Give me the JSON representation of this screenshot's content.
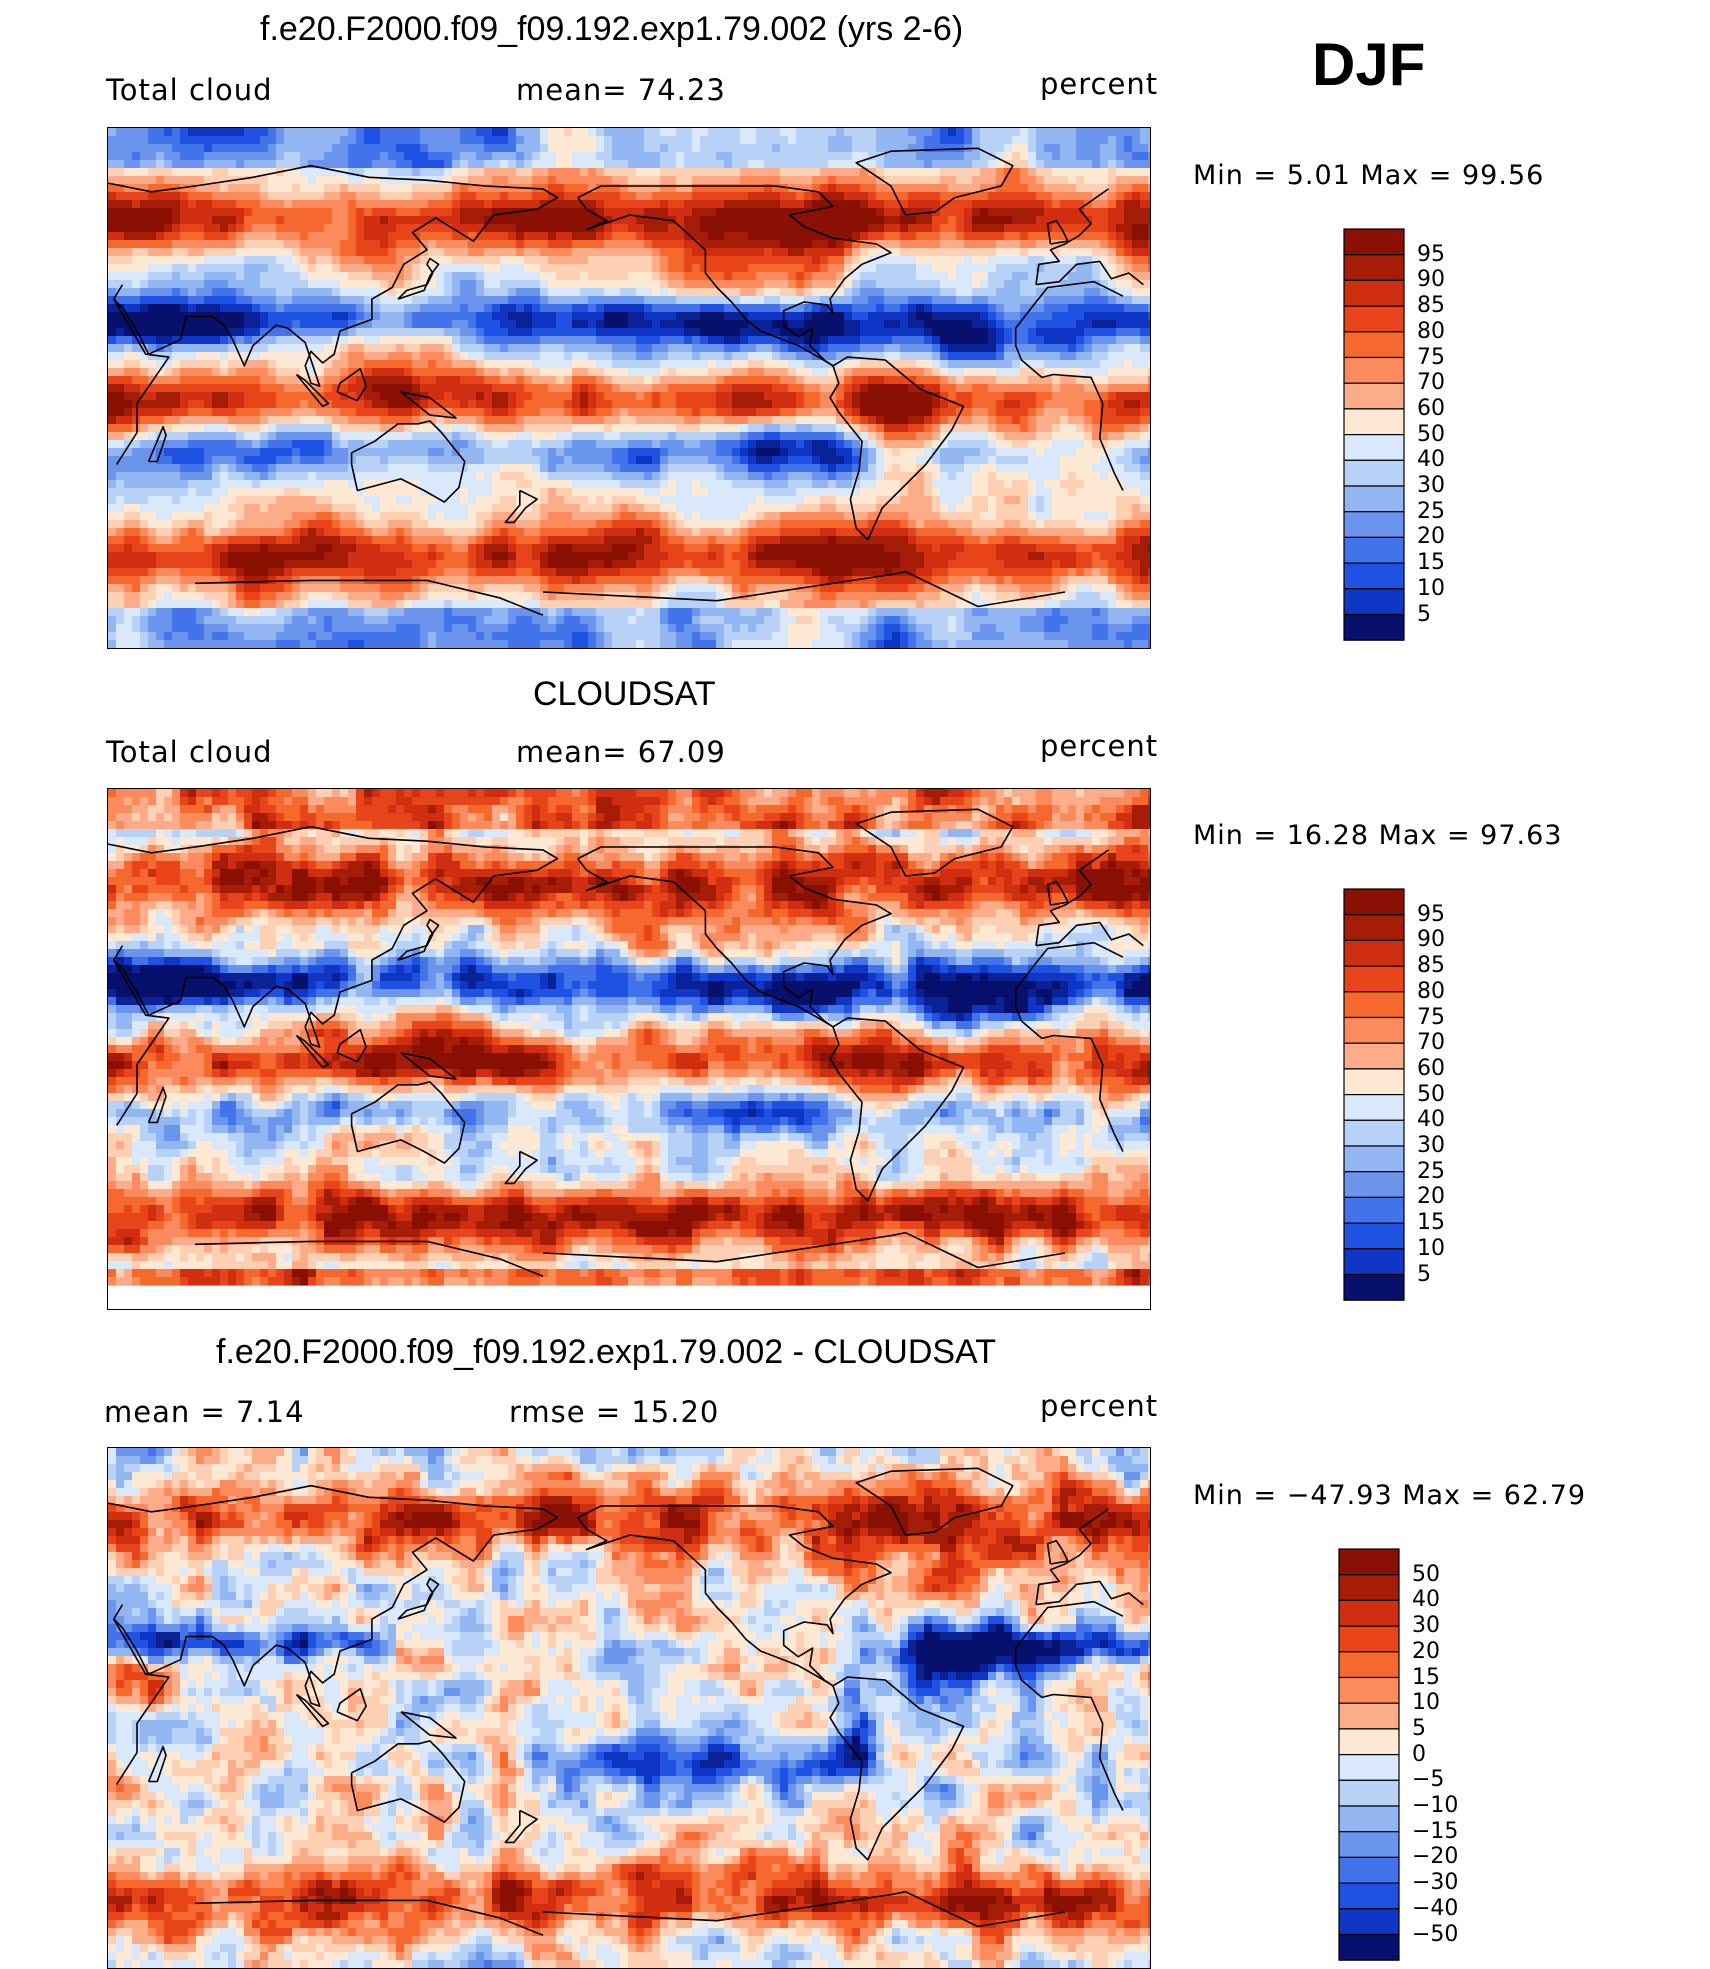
{
  "season": "DJF",
  "colors": {
    "warm": [
      "#fde8d4",
      "#fdd0b3",
      "#fcac88",
      "#fb8a5c",
      "#f5692e",
      "#e8461a",
      "#cf2f10",
      "#a51d07",
      "#8b1004"
    ],
    "cool": [
      "#d9e8fb",
      "#b8d2f7",
      "#92b6f2",
      "#6b95ed",
      "#4373ea",
      "#1f51e2",
      "#0f36c4",
      "#0b2296",
      "#08106e"
    ]
  },
  "panels": [
    {
      "title": "f.e20.F2000.f09_f09.192.exp1.79.002 (yrs 2-6)",
      "left_label": "Total cloud",
      "center_label": "mean=   74.23",
      "right_label": "percent",
      "minmax": "Min =    5.01  Max =   99.56",
      "colorbar": [
        "95",
        "90",
        "85",
        "80",
        "75",
        "70",
        "60",
        "50",
        "40",
        "30",
        "25",
        "20",
        "15",
        "10",
        "5"
      ],
      "palette": "abs1"
    },
    {
      "title": "CLOUDSAT",
      "left_label": "Total cloud",
      "center_label": "mean=   67.09",
      "right_label": "percent",
      "minmax": "Min =  16.28  Max =   97.63",
      "colorbar": [
        "95",
        "90",
        "85",
        "80",
        "75",
        "70",
        "60",
        "50",
        "40",
        "30",
        "25",
        "20",
        "15",
        "10",
        "5"
      ],
      "palette": "abs2"
    },
    {
      "title": "f.e20.F2000.f09_f09.192.exp1.79.002 - CLOUDSAT",
      "left_label": "mean  =     7.14",
      "center_label": "rmse  =    15.20",
      "right_label": "percent",
      "minmax": "Min = −47.93  Max =   62.79",
      "colorbar": [
        "50",
        "40",
        "30",
        "20",
        "15",
        "10",
        "5",
        "0",
        "−5",
        "−10",
        "−15",
        "−20",
        "−30",
        "−40",
        "−50"
      ],
      "palette": "diff"
    }
  ]
}
